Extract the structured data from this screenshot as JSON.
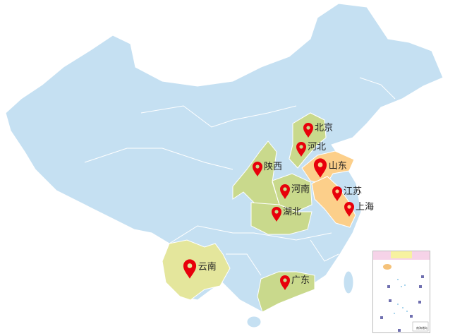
{
  "colors": {
    "base": "#c5e0f2",
    "group_green": "#c9d98c",
    "group_orange": "#fccf8a",
    "group_yellow": "#e4e69c",
    "marker": "#e8000b",
    "border": "#ffffff"
  },
  "markers": [
    {
      "label": "北京",
      "group": "green",
      "icon": "map-pin-icon"
    },
    {
      "label": "河北",
      "group": "green",
      "icon": "map-pin-icon"
    },
    {
      "label": "山东",
      "group": "orange",
      "icon": "map-pin-icon"
    },
    {
      "label": "陕西",
      "group": "green",
      "icon": "map-pin-icon"
    },
    {
      "label": "河南",
      "group": "green",
      "icon": "map-pin-icon"
    },
    {
      "label": "江苏",
      "group": "orange",
      "icon": "map-pin-icon"
    },
    {
      "label": "上海",
      "group": "orange",
      "icon": "map-pin-icon"
    },
    {
      "label": "湖北",
      "group": "green",
      "icon": "map-pin-icon"
    },
    {
      "label": "云南",
      "group": "yellow",
      "icon": "map-pin-icon"
    },
    {
      "label": "广东",
      "group": "green",
      "icon": "map-pin-icon"
    }
  ],
  "inset": {
    "label": "南海诸岛"
  }
}
